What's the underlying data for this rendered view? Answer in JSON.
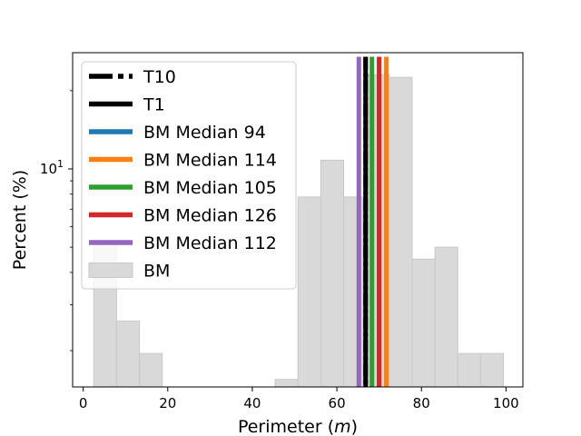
{
  "chart_data": {
    "type": "bar",
    "title": "",
    "xlabel": "Perimeter",
    "xlabel_unit": "m",
    "ylabel": "Percent (%)",
    "y_scale": "log",
    "xlim": [
      -2.5,
      104
    ],
    "ylim": [
      1.45,
      28
    ],
    "x_ticks": [
      0,
      20,
      40,
      60,
      80,
      100
    ],
    "x_tick_labels": [
      "0",
      "20",
      "40",
      "60",
      "80",
      "100"
    ],
    "y_major_ticks": [
      10
    ],
    "y_major_tick_label_base": "10",
    "y_major_tick_label_exp": "1",
    "grid": false,
    "legend_placement": "top-left",
    "histogram": {
      "name": "BM",
      "color": "#d9d9d9",
      "bins": [
        {
          "x0": 2.5,
          "x1": 7.9,
          "value": 5.2
        },
        {
          "x0": 7.9,
          "x1": 13.3,
          "value": 2.6
        },
        {
          "x0": 13.3,
          "x1": 18.7,
          "value": 1.95
        },
        {
          "x0": 45.4,
          "x1": 50.8,
          "value": 1.55
        },
        {
          "x0": 50.8,
          "x1": 56.2,
          "value": 7.8
        },
        {
          "x0": 56.2,
          "x1": 61.6,
          "value": 10.8
        },
        {
          "x0": 61.6,
          "x1": 67.0,
          "value": 7.8
        },
        {
          "x0": 67.0,
          "x1": 72.4,
          "value": 23.0
        },
        {
          "x0": 72.4,
          "x1": 77.8,
          "value": 22.5
        },
        {
          "x0": 77.8,
          "x1": 83.2,
          "value": 4.5
        },
        {
          "x0": 83.2,
          "x1": 88.6,
          "value": 5.0
        },
        {
          "x0": 88.6,
          "x1": 94.0,
          "value": 1.95
        },
        {
          "x0": 94.0,
          "x1": 99.4,
          "value": 1.95
        }
      ]
    },
    "vertical_lines": [
      {
        "name": "T10",
        "x": 66.8,
        "color": "#000000",
        "style": "dashdot"
      },
      {
        "name": "T1",
        "x": 66.8,
        "color": "#000000",
        "style": "solid"
      },
      {
        "name": "BM Median 94",
        "x": 70.0,
        "color": "#1f77b4",
        "style": "solid"
      },
      {
        "name": "BM Median 114",
        "x": 71.7,
        "color": "#ff7f0e",
        "style": "solid"
      },
      {
        "name": "BM Median 105",
        "x": 68.3,
        "color": "#2ca02c",
        "style": "solid"
      },
      {
        "name": "BM Median 126",
        "x": 70.0,
        "color": "#d62728",
        "style": "solid"
      },
      {
        "name": "BM Median 112",
        "x": 65.2,
        "color": "#9467bd",
        "style": "solid"
      }
    ],
    "legend": [
      {
        "label": "T10",
        "kind": "dashdot",
        "color": "#000000"
      },
      {
        "label": "T1",
        "kind": "line",
        "color": "#000000"
      },
      {
        "label": "BM Median 94",
        "kind": "line",
        "color": "#1f77b4"
      },
      {
        "label": "BM Median 114",
        "kind": "line",
        "color": "#ff7f0e"
      },
      {
        "label": "BM Median 105",
        "kind": "line",
        "color": "#2ca02c"
      },
      {
        "label": "BM Median 126",
        "kind": "line",
        "color": "#d62728"
      },
      {
        "label": "BM Median 112",
        "kind": "line",
        "color": "#9467bd"
      },
      {
        "label": "BM",
        "kind": "patch",
        "color": "#d9d9d9"
      }
    ]
  }
}
